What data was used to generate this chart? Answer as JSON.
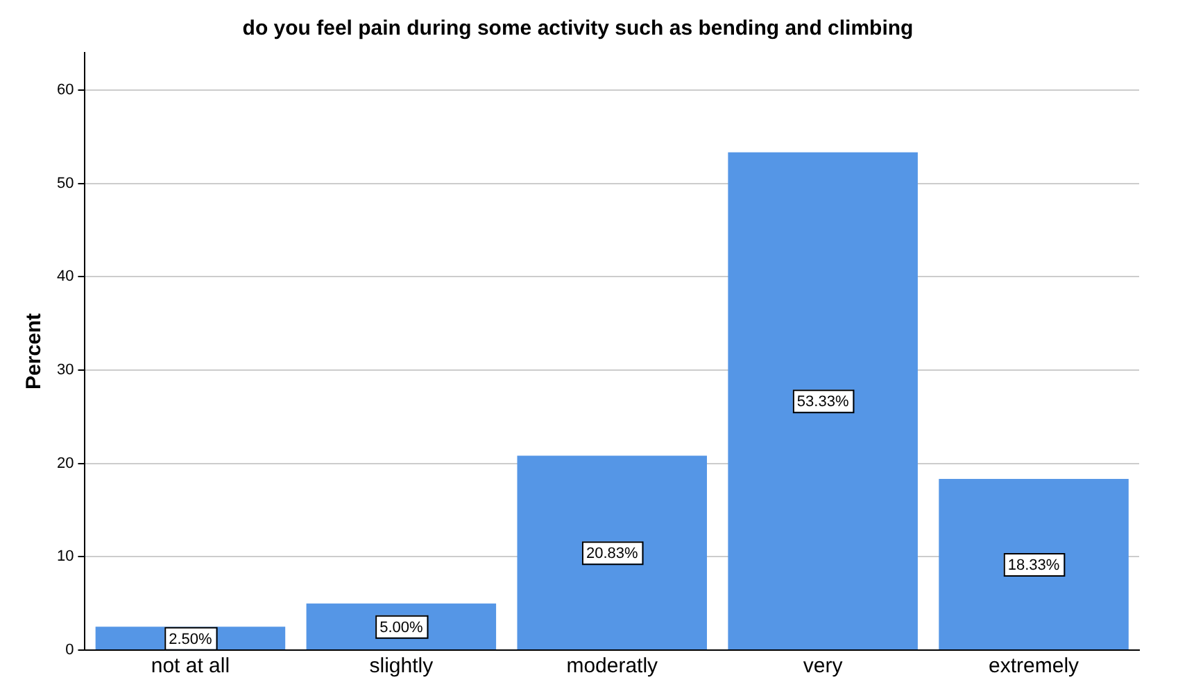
{
  "chart_data": {
    "type": "bar",
    "title": "do you feel pain during some activity such as bending and climbing",
    "ylabel": "Percent",
    "categories": [
      "not at all",
      "slightly",
      "moderatly",
      "very",
      "extremely"
    ],
    "values": [
      2.5,
      5,
      20.83,
      53.33,
      18.33
    ],
    "value_labels": [
      "2.50%",
      "5.00%",
      "20.83%",
      "53.33%",
      "18.33%"
    ],
    "color": "#5596e6",
    "ylim": [
      0,
      64
    ],
    "yticks": [
      0,
      10,
      20,
      30,
      40,
      50,
      60
    ],
    "grid": "y",
    "legend": false
  }
}
